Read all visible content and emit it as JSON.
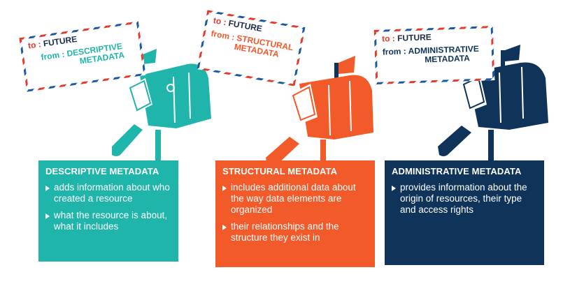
{
  "panels": [
    {
      "title": "DESCRIPTIVE METADATA",
      "color": "#1fb5aa",
      "bullets": [
        "adds information about who created  a resource",
        "what the resource is about, what it includes"
      ]
    },
    {
      "title": "STRUCTURAL METADATA",
      "color": "#f25a2a",
      "bullets": [
        "includes additional data about the way data elements are organized",
        "their relationships and the structure they exist in"
      ]
    },
    {
      "title": "ADMINISTRATIVE  METADATA",
      "color": "#10335a",
      "bullets": [
        "provides information about the origin of resources, their type and access rights"
      ]
    }
  ],
  "stamps": [
    {
      "to_label": "to :",
      "to_value": "FUTURE",
      "from_label": "from :",
      "from_value_1": "DESCRIPTIVE",
      "from_value_2": "METADATA"
    },
    {
      "to_label": "to :",
      "to_value": "FUTURE",
      "from_label": "from :",
      "from_value_1": "STRUCTURAL",
      "from_value_2": "METADATA"
    },
    {
      "to_label": "to :",
      "to_value": "FUTURE",
      "from_label": "from :",
      "from_value_1": "ADMINISTRATIVE",
      "from_value_2": "METADATA"
    }
  ],
  "colors": {
    "teal": "#1fb5aa",
    "orange": "#f25a2a",
    "navy": "#10335a",
    "stamp_red": "#e33b2e",
    "stamp_blue": "#1b5aa3"
  }
}
